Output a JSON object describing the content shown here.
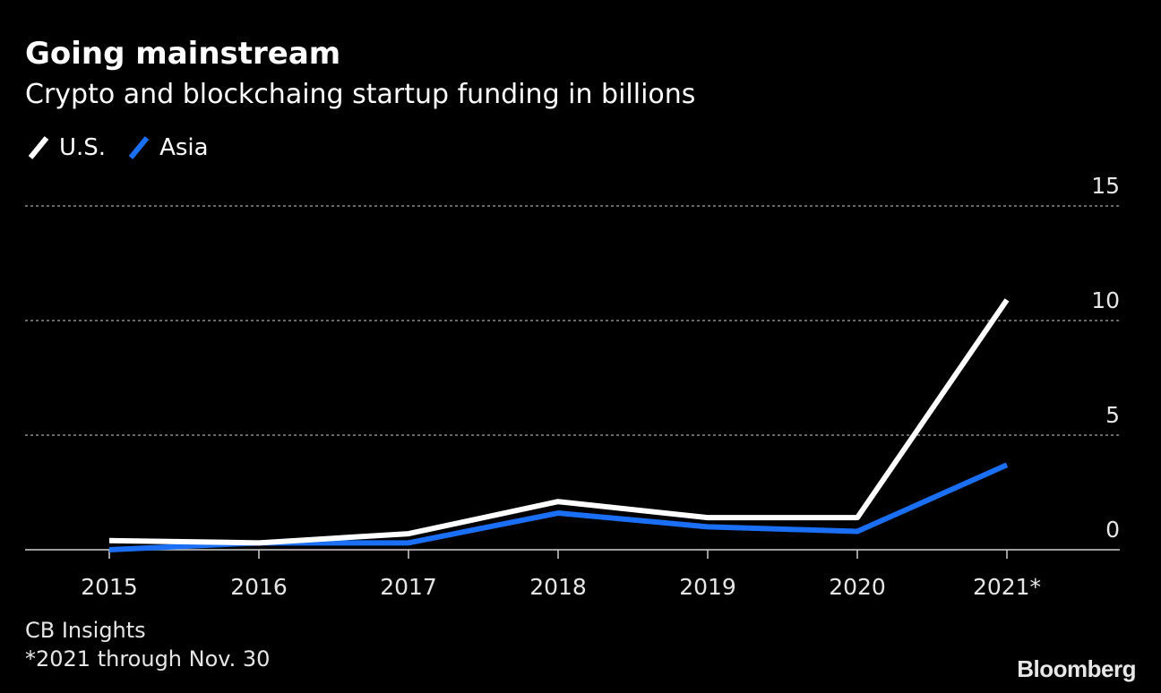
{
  "header": {
    "title": "Going mainstream",
    "subtitle": "Crypto and blockchaing startup funding in billions"
  },
  "footer": {
    "source": "CB Insights",
    "note": "*2021 through Nov. 30",
    "brand": "Bloomberg"
  },
  "colors": {
    "background": "#000000",
    "us": "#ffffff",
    "asia": "#1a6ff5",
    "grid": "#8a8a8a",
    "text": "#ffffff"
  },
  "chart_data": {
    "type": "line",
    "title": "Going mainstream",
    "subtitle": "Crypto and blockchaing startup funding in billions",
    "categories": [
      "2015",
      "2016",
      "2017",
      "2018",
      "2019",
      "2020",
      "2021*"
    ],
    "series": [
      {
        "name": "U.S.",
        "color": "#ffffff",
        "values": [
          0.4,
          0.3,
          0.7,
          2.1,
          1.4,
          1.4,
          10.9
        ]
      },
      {
        "name": "Asia",
        "color": "#1a6ff5",
        "values": [
          0.0,
          0.3,
          0.3,
          1.6,
          1.0,
          0.8,
          3.7
        ]
      }
    ],
    "ylim": [
      0,
      15
    ],
    "yticks": [
      0,
      5,
      10,
      15
    ],
    "y_axis_side": "right",
    "grid": true,
    "legend_position": "top-left",
    "xlabel": "",
    "ylabel": ""
  }
}
